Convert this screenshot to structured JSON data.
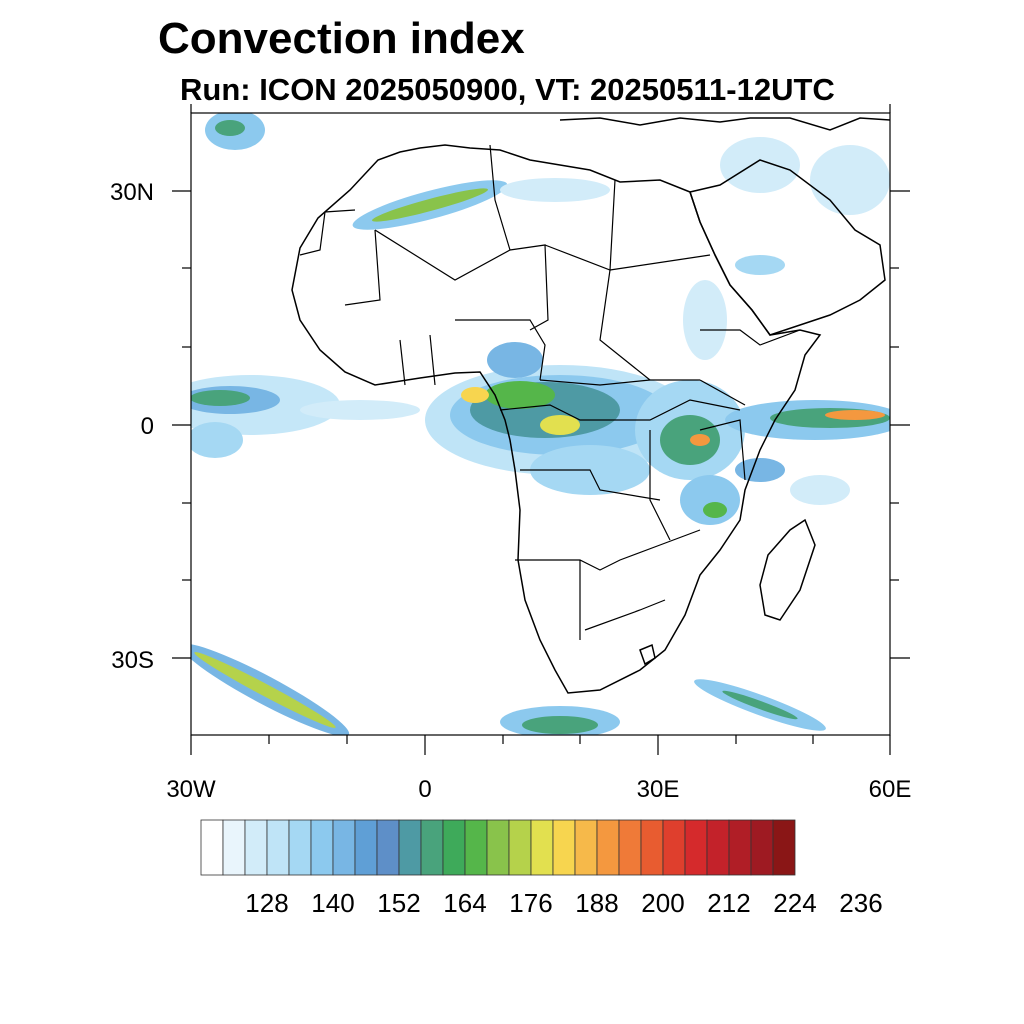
{
  "title": "Convection index",
  "subtitle": "Run: ICON 2025050900,  VT: 20250511-12UTC",
  "axes": {
    "lon_range": [
      -30,
      60
    ],
    "lat_range": [
      -40,
      40
    ],
    "y_labels": [
      {
        "lat": 30,
        "text": "30N"
      },
      {
        "lat": 0,
        "text": "0"
      },
      {
        "lat": -30,
        "text": "30S"
      }
    ],
    "x_labels": [
      {
        "lon": -30,
        "text": "30W"
      },
      {
        "lon": 0,
        "text": "0"
      },
      {
        "lon": 30,
        "text": "30E"
      },
      {
        "lon": 60,
        "text": "60E"
      }
    ]
  },
  "colorbar": {
    "colors": [
      "#ffffff",
      "#e9f5fc",
      "#d2ecf9",
      "#bfe4f7",
      "#a5d8f3",
      "#8cc9ee",
      "#78b6e4",
      "#5f9fd6",
      "#5e8fc8",
      "#4e9aa4",
      "#49a37c",
      "#3eaa5a",
      "#55b64a",
      "#89c34b",
      "#b5d24b",
      "#e2e04f",
      "#f7d54f",
      "#f6b94a",
      "#f4983f",
      "#ef7a38",
      "#e85c30",
      "#df3f2d",
      "#d52a2c",
      "#c3222a",
      "#b01e26",
      "#9e1a22",
      "#8a1616"
    ],
    "labels": [
      "128",
      "140",
      "152",
      "164",
      "176",
      "188",
      "200",
      "212",
      "224",
      "236"
    ]
  },
  "map_features": [
    "coastlines",
    "country-borders",
    "convection-index-shading"
  ]
}
